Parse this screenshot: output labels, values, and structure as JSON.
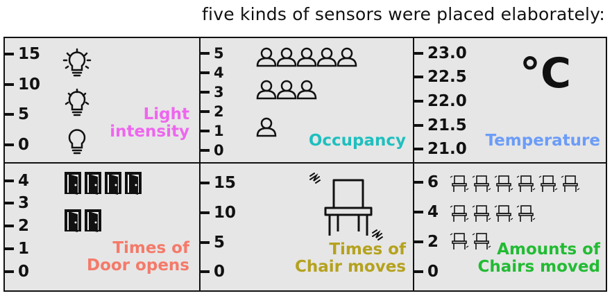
{
  "header": {
    "title": "five kinds of sensors were placed elaborately:"
  },
  "cells": [
    {
      "label": [
        "Light",
        "intensity"
      ],
      "color": "#ee66ee",
      "ticks": [
        "15",
        "10",
        "5",
        "0"
      ],
      "icon": "light-bulb-icon"
    },
    {
      "label": [
        "Occupancy"
      ],
      "color": "#1fbfbf",
      "ticks": [
        "5",
        "4",
        "3",
        "2",
        "1",
        "0"
      ],
      "icon": "person-icon"
    },
    {
      "label": [
        "Temperature"
      ],
      "color": "#6b9cf7",
      "ticks": [
        "23.0",
        "22.5",
        "22.0",
        "21.5",
        "21.0"
      ],
      "unit": "°C",
      "icon": "celsius-icon"
    },
    {
      "label": [
        "Times of",
        "Door opens"
      ],
      "color": "#f47a6a",
      "ticks": [
        "4",
        "3",
        "2",
        "1",
        "0"
      ],
      "icon": "door-icon"
    },
    {
      "label": [
        "Times of",
        "Chair moves"
      ],
      "color": "#b5a21e",
      "ticks": [
        "15",
        "10",
        "5",
        "0"
      ],
      "icon": "chair-icon"
    },
    {
      "label": [
        "Amounts of",
        "Chairs moved"
      ],
      "color": "#22bb33",
      "ticks": [
        "6",
        "4",
        "2",
        "0"
      ],
      "icon": "chair-icon"
    }
  ]
}
